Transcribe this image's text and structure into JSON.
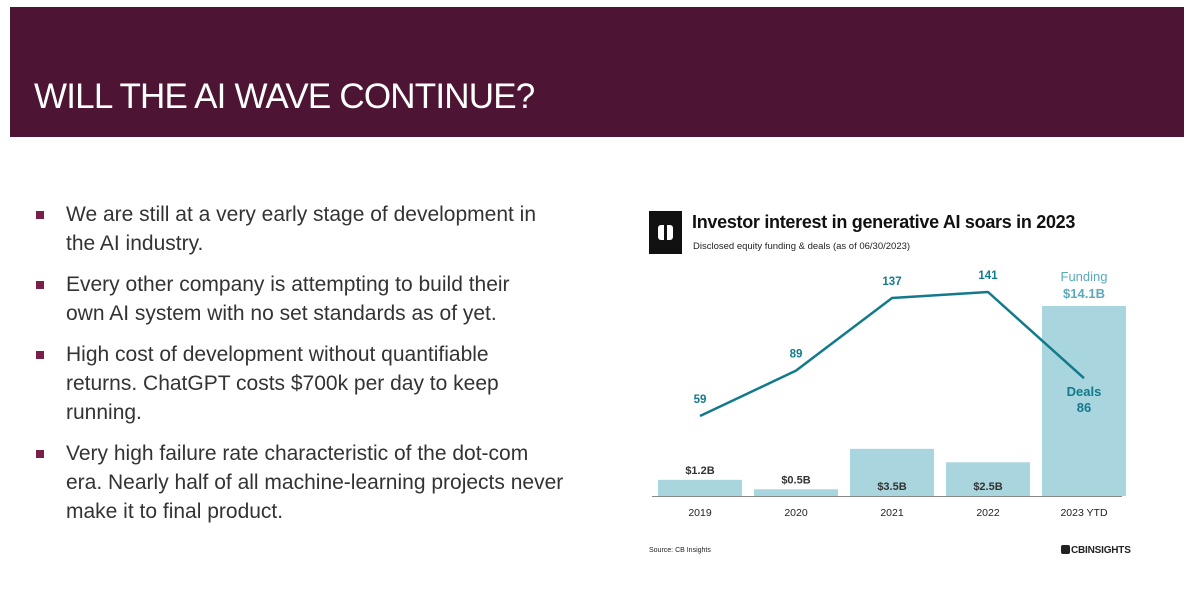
{
  "slide": {
    "title": "WILL THE AI WAVE CONTINUE?",
    "bullets": [
      "We are still at a very early stage of development in\nthe AI industry.",
      "Every other company is attempting to build their\nown AI system with no set standards as of yet.",
      "High cost of development without quantifiable\nreturns. ChatGPT costs $700k per day to keep\nrunning.",
      "Very high failure rate characteristic of the dot-com\nera. Nearly half of all machine-learning projects never\nmake it to final product."
    ]
  },
  "chart_data": {
    "type": "bar",
    "title": "Investor interest in generative AI soars in 2023",
    "subtitle": "Disclosed equity funding & deals (as of 06/30/2023)",
    "categories": [
      "2019",
      "2020",
      "2021",
      "2022",
      "2023 YTD"
    ],
    "series": [
      {
        "name": "Funding",
        "type": "bar",
        "unit": "$B",
        "values": [
          1.2,
          0.5,
          3.5,
          2.5,
          14.1
        ],
        "labels": [
          "$1.2B",
          "$0.5B",
          "$3.5B",
          "$2.5B",
          "$14.1B"
        ],
        "color": "#a8d5de"
      },
      {
        "name": "Deals",
        "type": "line",
        "values": [
          59,
          89,
          137,
          141,
          86
        ],
        "labels": [
          "59",
          "89",
          "137",
          "141",
          "86"
        ],
        "color": "#127a8c"
      }
    ],
    "callout_funding_label": "Funding",
    "callout_deals_label": "Deals",
    "source": "Source: CB Insights",
    "brand": "CBINSIGHTS",
    "colors": {
      "bar": "#a8d5de",
      "line": "#127a8c",
      "label": "#333333"
    }
  }
}
